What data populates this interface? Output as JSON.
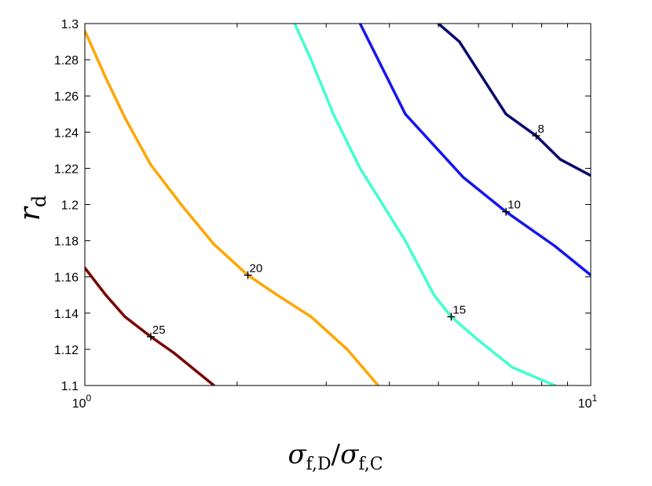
{
  "chart_data": {
    "type": "line",
    "title": "",
    "xscale": "log",
    "xlim": [
      1,
      10
    ],
    "ylim": [
      1.1,
      1.3
    ],
    "grid": false,
    "legend": "none",
    "xlabel": {
      "main1": "σ",
      "sub1": "f,D",
      "slash": "/",
      "main2": "σ",
      "sub2": "f,C"
    },
    "ylabel": {
      "main": "r",
      "sub": "d"
    },
    "x_ticks": [
      {
        "value": 1,
        "base": "10",
        "exp": "0"
      },
      {
        "value": 10,
        "base": "10",
        "exp": "1"
      }
    ],
    "y_ticks": [
      {
        "value": 1.1,
        "label": "1.1"
      },
      {
        "value": 1.12,
        "label": "1.12"
      },
      {
        "value": 1.14,
        "label": "1.14"
      },
      {
        "value": 1.16,
        "label": "1.16"
      },
      {
        "value": 1.18,
        "label": "1.18"
      },
      {
        "value": 1.2,
        "label": "1.2"
      },
      {
        "value": 1.22,
        "label": "1.22"
      },
      {
        "value": 1.24,
        "label": "1.24"
      },
      {
        "value": 1.26,
        "label": "1.26"
      },
      {
        "value": 1.28,
        "label": "1.28"
      },
      {
        "value": 1.3,
        "label": "1.3"
      }
    ],
    "series": [
      {
        "label": "8",
        "color": "#0a0a6e",
        "points": [
          [
            5.0,
            1.3
          ],
          [
            5.5,
            1.29
          ],
          [
            6.8,
            1.25
          ],
          [
            7.8,
            1.238
          ],
          [
            8.7,
            1.225
          ],
          [
            10.0,
            1.216
          ]
        ],
        "marker": [
          7.8,
          1.238
        ]
      },
      {
        "label": "10",
        "color": "#1515ee",
        "points": [
          [
            3.5,
            1.3
          ],
          [
            4.3,
            1.25
          ],
          [
            5.6,
            1.215
          ],
          [
            6.8,
            1.196
          ],
          [
            8.5,
            1.177
          ],
          [
            10.0,
            1.161
          ]
        ],
        "marker": [
          6.8,
          1.196
        ]
      },
      {
        "label": "15",
        "color": "#40ffd0",
        "points": [
          [
            2.6,
            1.3
          ],
          [
            2.8,
            1.28
          ],
          [
            3.1,
            1.25
          ],
          [
            3.5,
            1.22
          ],
          [
            4.3,
            1.18
          ],
          [
            4.9,
            1.15
          ],
          [
            5.3,
            1.138
          ],
          [
            6.0,
            1.125
          ],
          [
            7.0,
            1.11
          ],
          [
            8.5,
            1.1
          ]
        ],
        "marker": [
          5.3,
          1.138
        ]
      },
      {
        "label": "20",
        "color": "#ffa500",
        "points": [
          [
            1.0,
            1.296
          ],
          [
            1.1,
            1.27
          ],
          [
            1.2,
            1.248
          ],
          [
            1.35,
            1.222
          ],
          [
            1.55,
            1.2
          ],
          [
            1.8,
            1.178
          ],
          [
            2.1,
            1.161
          ],
          [
            2.4,
            1.15
          ],
          [
            2.8,
            1.138
          ],
          [
            3.3,
            1.12
          ],
          [
            3.8,
            1.1
          ]
        ],
        "marker": [
          2.1,
          1.161
        ]
      },
      {
        "label": "25",
        "color": "#7a0000",
        "points": [
          [
            1.0,
            1.165
          ],
          [
            1.1,
            1.15
          ],
          [
            1.2,
            1.138
          ],
          [
            1.35,
            1.127
          ],
          [
            1.5,
            1.118
          ],
          [
            1.8,
            1.1
          ]
        ],
        "marker": [
          1.35,
          1.127
        ]
      }
    ]
  }
}
